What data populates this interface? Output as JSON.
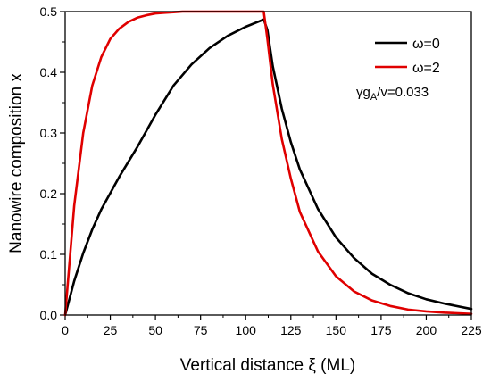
{
  "chart_data": {
    "type": "line",
    "title": "",
    "xlabel": "Vertical distance ξ (ML)",
    "ylabel": "Nanowire composition x",
    "xlim": [
      0,
      225
    ],
    "ylim": [
      0,
      0.5
    ],
    "xticks": [
      0,
      25,
      50,
      75,
      100,
      125,
      150,
      175,
      200,
      225
    ],
    "yticks": [
      0.0,
      0.1,
      0.2,
      0.3,
      0.4,
      0.5
    ],
    "xtick_labels": [
      "0",
      "25",
      "50",
      "75",
      "100",
      "125",
      "150",
      "175",
      "200",
      "225"
    ],
    "ytick_labels": [
      "0.0",
      "0.1",
      "0.2",
      "0.3",
      "0.4",
      "0.5"
    ],
    "grid": false,
    "legend_position": "top-right",
    "annotation": {
      "pre": "γg",
      "sub": "A",
      "post": "/v=0.033"
    },
    "series": [
      {
        "name": "ω=0",
        "color": "#000000",
        "x": [
          0,
          5,
          10,
          15,
          20,
          25,
          30,
          40,
          50,
          60,
          70,
          80,
          90,
          100,
          110,
          112,
          115,
          120,
          125,
          130,
          140,
          150,
          160,
          170,
          180,
          190,
          200,
          210,
          225
        ],
        "y": [
          0.0,
          0.056,
          0.102,
          0.141,
          0.174,
          0.201,
          0.228,
          0.277,
          0.33,
          0.378,
          0.413,
          0.44,
          0.46,
          0.475,
          0.487,
          0.47,
          0.41,
          0.34,
          0.285,
          0.24,
          0.175,
          0.128,
          0.094,
          0.068,
          0.05,
          0.036,
          0.026,
          0.019,
          0.01
        ]
      },
      {
        "name": "ω=2",
        "color": "#e00000",
        "x": [
          0,
          5,
          10,
          15,
          20,
          25,
          30,
          35,
          40,
          45,
          50,
          55,
          60,
          65,
          70,
          80,
          90,
          100,
          110,
          112,
          115,
          120,
          125,
          130,
          140,
          150,
          160,
          170,
          180,
          190,
          200,
          210,
          225
        ],
        "y": [
          0.0,
          0.18,
          0.3,
          0.378,
          0.425,
          0.455,
          0.472,
          0.483,
          0.49,
          0.494,
          0.497,
          0.498,
          0.499,
          0.5,
          0.5,
          0.5,
          0.5,
          0.5,
          0.5,
          0.455,
          0.38,
          0.29,
          0.225,
          0.17,
          0.105,
          0.064,
          0.039,
          0.024,
          0.015,
          0.009,
          0.006,
          0.004,
          0.002
        ]
      }
    ]
  }
}
